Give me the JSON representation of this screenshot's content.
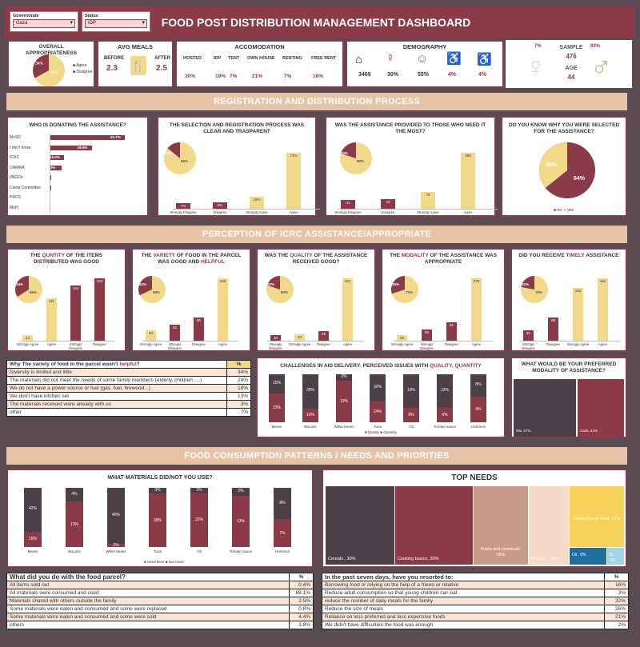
{
  "header": {
    "title": "FOOD POST DISTRIBUTION MANAGEMENT DASHBOARD",
    "filters": [
      {
        "label": "Governorate",
        "value": "Gaza"
      },
      {
        "label": "Status",
        "value": "IDP"
      }
    ]
  },
  "kpis": {
    "overall": {
      "title": "OVERALL APPROPRIATENESS",
      "legend": [
        "Agree",
        "Disagree"
      ],
      "values": [
        "34%",
        "66%"
      ]
    },
    "avg_meals": {
      "title": "AVG MEALS",
      "before_label": "BEFORE",
      "before": "2.3",
      "after_label": "AFTER",
      "after": "2.5"
    },
    "accommodation": {
      "title": "ACCOMODATION",
      "items": [
        {
          "label": "HOSTED",
          "value": "30%"
        },
        {
          "label": "IDP",
          "value": "19%"
        },
        {
          "label": "TENT",
          "value": "7%"
        },
        {
          "label": "OWN HOUSE",
          "value": "21%"
        },
        {
          "label": "RENTING",
          "value": "7%"
        },
        {
          "label": "FREE RENT",
          "value": "16%"
        }
      ]
    },
    "demography": {
      "title": "DEMOGRAPHY",
      "values": [
        "3469",
        "30%",
        "55%",
        "4%",
        "4%"
      ]
    },
    "sample": {
      "title": "SAMPLE",
      "value": "476",
      "age_label": "AGE",
      "age": "44",
      "female": "7%",
      "male": "93%"
    }
  },
  "sections": {
    "registration": "REGISTRATION AND DISTRIBUTION PROCESS",
    "perception": "PERCEPTION OF ICRC ASSISTANCE/APPROPRIATE",
    "consumption": "FOOD CONSUMPTION PATTERNS / NEEDS AND PRIORITIES"
  },
  "chart_data": [
    {
      "type": "bar",
      "title": "WHO IS DONATING THE ASSISTANCE?",
      "orientation": "horizontal",
      "categories": [
        "MoSD",
        "I don't know",
        "ICRC",
        "UNRWA",
        "I/NGOs",
        "Camp Committee",
        "PRCS",
        "MoH"
      ],
      "values": [
        51.7,
        28.9,
        10.0,
        8.3,
        1.0,
        0.1,
        0.0,
        0.0
      ],
      "labels": [
        "51.7%",
        "28.9%",
        "10.0%",
        "8.3%",
        "",
        "",
        "",
        ""
      ]
    },
    {
      "type": "bar",
      "title": "THE SELECTION AND REGISTRATION PROCESS WAS CLEAR AND TRASPARENT",
      "categories": [
        "Strongly Disagree",
        "Disagree",
        "Strongly Agree",
        "Agree"
      ],
      "values": [
        7,
        8,
        15,
        71
      ],
      "labels": [
        "7%",
        "8%",
        "15%",
        "71%"
      ],
      "pie": [
        "14%",
        "86%"
      ]
    },
    {
      "type": "bar",
      "title": "WAS THE ASSISTANCE PROVIDED TO THOSE WHO NEED IT THE MOST?",
      "categories": [
        "Strongly Disagree",
        "Disagree",
        "Strongly Agree",
        "Agree"
      ],
      "values": [
        41,
        43,
        78,
        256
      ],
      "labels": [
        "41",
        "43",
        "78",
        "256"
      ],
      "pie": [
        "20%",
        "80%"
      ]
    },
    {
      "type": "pie",
      "title": "DO YOU KNOW WHY YOU WERE SELECTED FOR THE ASSISTANCE?",
      "categories": [
        "no",
        "yes"
      ],
      "values": [
        64,
        36
      ],
      "labels": [
        "64%",
        "36%"
      ]
    },
    {
      "type": "bar",
      "title_parts": [
        "THE ",
        "QUNTITY",
        " OF THE ITEMS DISTRIBUTED WAS GOOD"
      ],
      "categories": [
        "Strongly Agree",
        "Agree",
        "Strongly Disagree",
        "Disagree"
      ],
      "values": [
        14,
        111,
        144,
        163
      ],
      "labels": [
        "14",
        "111",
        "144",
        "163"
      ],
      "pie": [
        "34%",
        "66%"
      ]
    },
    {
      "type": "bar",
      "title_parts": [
        "THE ",
        "VARIETY",
        " OF FOOD IN THE PARCEL WAS GOOD AND ",
        "HELPFUL"
      ],
      "categories": [
        "Strongly Agree",
        "Strongly Disagree",
        "Disagree",
        "Agree"
      ],
      "values": [
        40,
        62,
        90,
        240
      ],
      "labels": [
        "40",
        "62",
        "90",
        "240"
      ],
      "pie": [
        "32%",
        "68%"
      ]
    },
    {
      "type": "bar",
      "title_parts": [
        "WAS THE ",
        "QUALITY",
        " OF THE ASSISTANCE RECEIVED GOOD?"
      ],
      "categories": [
        "Strongly Disagree",
        "Strongly Agree",
        "Disagree",
        "Agree"
      ],
      "values": [
        30,
        33,
        49,
        321
      ],
      "labels": [
        "30",
        "33",
        "49",
        "321"
      ],
      "pie": [
        "20%",
        "80%"
      ]
    },
    {
      "type": "bar",
      "title_parts": [
        "THE ",
        "MODALITY",
        " OF THE ASSISTANCE WAS APPROPRIATE"
      ],
      "categories": [
        "Strongly Agree",
        "Strongly Disagree",
        "Disagree",
        "Agree"
      ],
      "values": [
        25,
        50,
        81,
        276
      ],
      "labels": [
        "25",
        "50",
        "81",
        "276"
      ],
      "pie": [
        "30%",
        "70%"
      ]
    },
    {
      "type": "bar",
      "title_parts": [
        "DID YOU RECEIVE ",
        "TIMELY",
        " ASSISTANCE"
      ],
      "categories": [
        "Strongly Disagree",
        "Disagree",
        "Strongly Agree",
        "Agree"
      ],
      "values": [
        31,
        68,
        152,
        181
      ],
      "labels": [
        "31",
        "68",
        "152",
        "181"
      ],
      "pie": [
        "22%",
        "78%"
      ]
    },
    {
      "type": "bar",
      "title_parts": [
        "CHALLENGES IN AID DELIVERY: PERCEIVED ISSUES WITH ",
        "QUALITY",
        ", ",
        "QUANTITY"
      ],
      "stacked": true,
      "categories": [
        "Beans",
        "Biscuits",
        "White beans",
        "Tuna",
        "Oil",
        "Tomato sauce",
        "Hummus"
      ],
      "series": [
        {
          "name": "Quality",
          "values": [
            23,
            10,
            19,
            24,
            8,
            6,
            9
          ],
          "labels": [
            "23%",
            "10%",
            "19%",
            "24%",
            "8%",
            "6%",
            "9%"
          ]
        },
        {
          "name": "Quantity",
          "values": [
            15,
            25,
            3,
            32,
            19,
            13,
            8
          ],
          "labels": [
            "15%",
            "25%",
            "3%",
            "32%",
            "19%",
            "13%",
            "8%"
          ]
        }
      ]
    },
    {
      "type": "treemap",
      "title": "WHAT WOULD BE YOUR PREFERRED MODALITY OF ASSISTANCE?",
      "categories": [
        "Mix",
        "Cash"
      ],
      "values": [
        57,
        43
      ],
      "labels": [
        "Mix, 57%",
        "Cash, 43%"
      ]
    },
    {
      "type": "bar",
      "title": "WHAT MATERIALS DID/NOT YOU USE?",
      "stacked": true,
      "categories": [
        "Beans",
        "Biscuits",
        "White beans",
        "Tuna",
        "Oil",
        "Tomato sauce",
        "Hummus"
      ],
      "series": [
        {
          "name": "Used Most",
          "values": [
            15,
            13,
            2,
            28,
            22,
            13,
            7
          ],
          "labels": [
            "15%",
            "13%",
            "2%",
            "28%",
            "22%",
            "13%",
            "7%"
          ]
        },
        {
          "name": "Not Used",
          "values": [
            42,
            4,
            40,
            3,
            2,
            2,
            8
          ],
          "labels": [
            "42%",
            "4%",
            "40%",
            "3%",
            "2%",
            "2%",
            "8%"
          ]
        }
      ]
    },
    {
      "type": "treemap",
      "title": "TOP NEEDS",
      "categories": [
        "Cereals",
        "Cooking basics",
        "Pasta and vermicelli",
        "Protein",
        "Ready-to-eat food",
        "Oil",
        "Baby"
      ],
      "values": [
        30,
        20,
        18,
        14,
        11,
        6,
        2
      ],
      "labels": [
        "Cereals , 30%",
        "Cooking basics, 20%",
        "Pasta and vermicelli, 18%",
        "Protein , 14%",
        "Ready-to-eat food, 11%",
        "Oil , 6%",
        "B... 2%"
      ]
    }
  ],
  "helpful_table": {
    "head": "Why The variety of food in the parcel wasn't ",
    "head_red": "helpful",
    "head_end": "?",
    "col": "%",
    "rows": [
      {
        "label": "Diversity is limited and little",
        "value": "34%"
      },
      {
        "label": "The materials did not meet the needs of some family members (elderly, children ....)",
        "value": "24%"
      },
      {
        "label": "We do not have a power source or fuel (gas, fuel, firewood...)",
        "value": "18%"
      },
      {
        "label": "We don't have kitchen set",
        "value": "13%"
      },
      {
        "label": "The materials received were already with us",
        "value": "3%"
      },
      {
        "label": "other",
        "value": "7%"
      }
    ]
  },
  "parcel_table": {
    "head": "What did you do with the food parcel?",
    "col": "%",
    "rows": [
      {
        "label": "All items sold out",
        "value": "0.4%"
      },
      {
        "label": "All materials were consumed and used",
        "value": "88.1%"
      },
      {
        "label": "Materials shared with others outside the family",
        "value": "2.5%"
      },
      {
        "label": "Some materials were eaten and consumed and some were replaced",
        "value": "0.8%"
      },
      {
        "label": "Some materials were eaten and consumed and some were sold",
        "value": "4.4%"
      },
      {
        "label": "others",
        "value": "3.8%"
      }
    ]
  },
  "coping_table": {
    "head": "In the past seven days, have you resorted to:",
    "col": "%",
    "rows": [
      {
        "label": "Borrowing food or relying on the help of a friend or relative",
        "value": "16%"
      },
      {
        "label": "Reduce adult consumption so that young children can eat",
        "value": "3%"
      },
      {
        "label": "reduce the number of daily meals for the family",
        "value": "32%"
      },
      {
        "label": "Reduce the size of meals",
        "value": "26%"
      },
      {
        "label": "Reliance on less preferred and less expensive foods",
        "value": "21%"
      },
      {
        "label": "We didn't have difficulties the food was enough",
        "value": "2%"
      }
    ]
  },
  "colors": {
    "primary": "#8b3a48",
    "secondary": "#f2d98a",
    "banner": "#e6c3a6",
    "dark": "#4c3f48"
  }
}
